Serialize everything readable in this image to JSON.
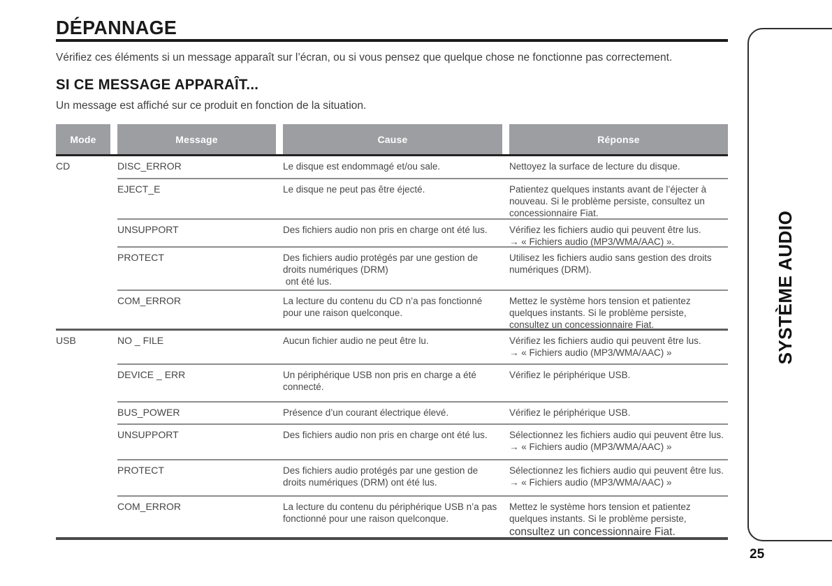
{
  "header": {
    "title": "DÉPANNAGE",
    "intro": "Vérifiez ces éléments si un message apparaît sur l’écran, ou si vous pensez que quelque chose ne fonctionne pas correctement.",
    "subtitle": "SI CE MESSAGE APPARAÎT...",
    "subtitle_intro": "Un message est affiché sur ce produit en fonction de la situation."
  },
  "table": {
    "columns": [
      "Mode",
      "Message",
      "Cause",
      "Réponse"
    ],
    "header_bg": "#9c9ea1",
    "sections": [
      {
        "mode": "CD",
        "rows": [
          {
            "message": "DISC_ERROR",
            "cause": "Le disque est endommagé et/ou sale.",
            "response": "Nettoyez la surface de lecture du disque."
          },
          {
            "message": "EJECT_E",
            "cause": "Le disque ne peut pas être éjecté.",
            "response": "Patientez quelques instants avant de l’éjecter à\nnouveau. Si le problème persiste, consultez un\nconcessionnaire Fiat."
          },
          {
            "message": "UNSUPPORT",
            "cause": "Des fichiers audio non pris en charge ont été lus.",
            "response": "Vérifiez les fichiers audio qui peuvent être lus.\n→ « Fichiers audio (MP3/WMA/AAC) »."
          },
          {
            "message": "PROTECT",
            "cause": "Des fichiers audio protégés par une gestion de\ndroits numériques (DRM)\n ont été lus.",
            "response": "Utilisez les fichiers audio sans gestion des droits\nnumériques (DRM)."
          },
          {
            "message": "COM_ERROR",
            "cause": "La lecture du contenu du CD n’a pas fonctionné\npour une raison quelconque.",
            "response": "Mettez le système hors tension et patientez\nquelques instants. Si le problème persiste,\nconsultez un concessionnaire Fiat."
          }
        ]
      },
      {
        "mode": "USB",
        "rows": [
          {
            "message": "NO _ FILE",
            "cause": "Aucun fichier audio ne peut être lu.",
            "response": "Vérifiez les fichiers audio qui peuvent être lus.\n→ « Fichiers audio (MP3/WMA/AAC) »"
          },
          {
            "message": "DEVICE _ ERR",
            "cause": "Un périphérique USB non pris en charge a été\nconnecté.",
            "response": "Vérifiez le périphérique USB."
          },
          {
            "message": "BUS_POWER",
            "cause": "Présence d’un courant électrique élevé.",
            "response": "Vérifiez le périphérique USB."
          },
          {
            "message": "UNSUPPORT",
            "cause": "Des fichiers audio non pris en charge ont été lus.",
            "response": "Sélectionnez les fichiers audio qui peuvent être lus.\n→ « Fichiers audio (MP3/WMA/AAC) »"
          },
          {
            "message": "PROTECT",
            "cause": "Des fichiers audio protégés par une gestion de\ndroits numériques (DRM) ont été lus.",
            "response": "Sélectionnez les fichiers audio qui peuvent être lus.\n→ « Fichiers audio (MP3/WMA/AAC) »"
          },
          {
            "message": "COM_ERROR",
            "cause": "La lecture du contenu du périphérique USB n’a pas\nfonctionné pour une raison quelconque.",
            "response": "Mettez le système hors tension et patientez\nquelques instants. Si le problème persiste,",
            "response_large": "consultez un concessionnaire Fiat."
          }
        ]
      }
    ]
  },
  "sidebar": {
    "tab_label": "SYSTÈME AUDIO"
  },
  "footer": {
    "page_number": "25"
  }
}
